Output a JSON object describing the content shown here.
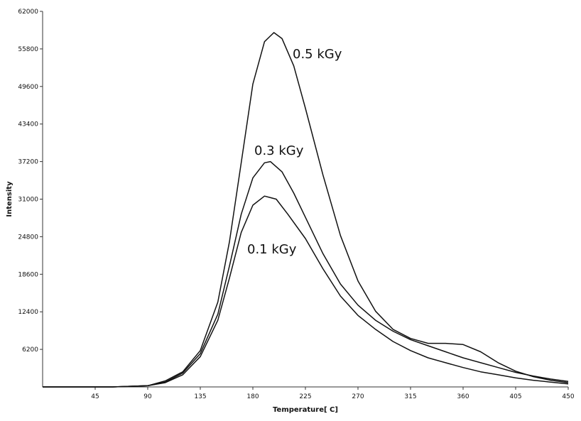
{
  "chart_data": {
    "type": "line",
    "title": "",
    "xlabel": "Temperature[ C]",
    "ylabel": "Intensity",
    "xlim": [
      0,
      450
    ],
    "ylim": [
      0,
      62000
    ],
    "x_ticks": [
      45,
      90,
      135,
      180,
      225,
      270,
      315,
      360,
      405,
      450
    ],
    "y_ticks": [
      6200,
      12400,
      18600,
      24800,
      31000,
      37200,
      43400,
      49600,
      55800,
      62000
    ],
    "grid": false,
    "legend": "none",
    "line_color": "#111111",
    "series": [
      {
        "name": "0.5 kGy",
        "points": [
          [
            0,
            0
          ],
          [
            60,
            0
          ],
          [
            90,
            200
          ],
          [
            105,
            1000
          ],
          [
            120,
            2500
          ],
          [
            135,
            6000
          ],
          [
            150,
            14000
          ],
          [
            160,
            24000
          ],
          [
            170,
            37000
          ],
          [
            180,
            50000
          ],
          [
            190,
            57000
          ],
          [
            198,
            58500
          ],
          [
            205,
            57500
          ],
          [
            215,
            53000
          ],
          [
            225,
            46000
          ],
          [
            240,
            35000
          ],
          [
            255,
            25000
          ],
          [
            270,
            17500
          ],
          [
            285,
            12500
          ],
          [
            300,
            9500
          ],
          [
            315,
            8000
          ],
          [
            330,
            7200
          ],
          [
            345,
            7200
          ],
          [
            360,
            7000
          ],
          [
            375,
            5800
          ],
          [
            390,
            4000
          ],
          [
            405,
            2600
          ],
          [
            420,
            1700
          ],
          [
            435,
            1100
          ],
          [
            450,
            700
          ]
        ]
      },
      {
        "name": "0.3 kGy",
        "points": [
          [
            0,
            0
          ],
          [
            60,
            0
          ],
          [
            90,
            200
          ],
          [
            105,
            800
          ],
          [
            120,
            2300
          ],
          [
            135,
            5500
          ],
          [
            150,
            12000
          ],
          [
            160,
            20000
          ],
          [
            170,
            28500
          ],
          [
            180,
            34500
          ],
          [
            190,
            37000
          ],
          [
            195,
            37200
          ],
          [
            205,
            35500
          ],
          [
            215,
            32000
          ],
          [
            225,
            28000
          ],
          [
            240,
            22000
          ],
          [
            255,
            17000
          ],
          [
            270,
            13500
          ],
          [
            285,
            11000
          ],
          [
            300,
            9200
          ],
          [
            315,
            7800
          ],
          [
            330,
            6800
          ],
          [
            345,
            5800
          ],
          [
            360,
            4800
          ],
          [
            375,
            4000
          ],
          [
            390,
            3200
          ],
          [
            405,
            2400
          ],
          [
            420,
            1800
          ],
          [
            435,
            1300
          ],
          [
            450,
            900
          ]
        ]
      },
      {
        "name": "0.1 kGy",
        "points": [
          [
            0,
            0
          ],
          [
            60,
            0
          ],
          [
            90,
            200
          ],
          [
            105,
            700
          ],
          [
            120,
            2000
          ],
          [
            135,
            5000
          ],
          [
            150,
            11000
          ],
          [
            160,
            18000
          ],
          [
            170,
            25500
          ],
          [
            180,
            30000
          ],
          [
            190,
            31500
          ],
          [
            200,
            31000
          ],
          [
            210,
            28500
          ],
          [
            225,
            24500
          ],
          [
            240,
            19500
          ],
          [
            255,
            15000
          ],
          [
            270,
            11800
          ],
          [
            285,
            9500
          ],
          [
            300,
            7500
          ],
          [
            315,
            6000
          ],
          [
            330,
            4800
          ],
          [
            345,
            4000
          ],
          [
            360,
            3200
          ],
          [
            375,
            2500
          ],
          [
            390,
            2000
          ],
          [
            405,
            1500
          ],
          [
            420,
            1100
          ],
          [
            435,
            800
          ],
          [
            450,
            500
          ]
        ]
      }
    ]
  }
}
